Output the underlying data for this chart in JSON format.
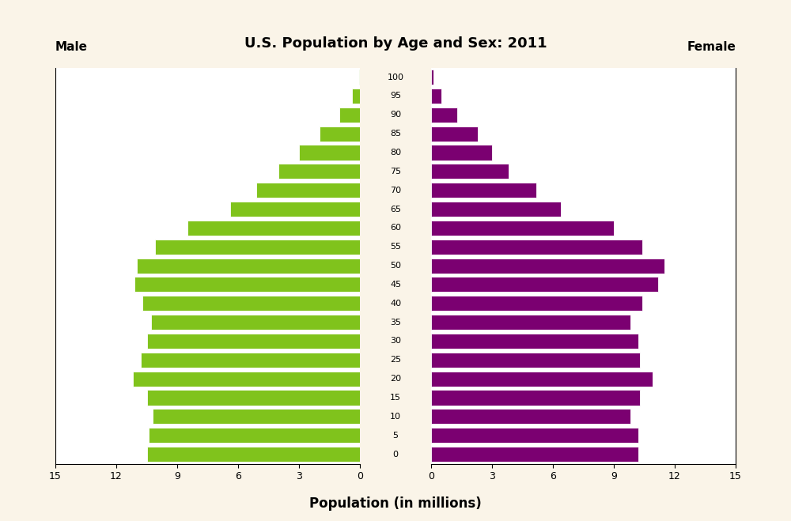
{
  "title": "U.S. Population by Age and Sex: 2011",
  "xlabel": "Population (in millions)",
  "male_label": "Male",
  "female_label": "Female",
  "age_groups": [
    0,
    5,
    10,
    15,
    20,
    25,
    30,
    35,
    40,
    45,
    50,
    55,
    60,
    65,
    70,
    75,
    80,
    85,
    90,
    95,
    100
  ],
  "male_values": [
    10.5,
    10.4,
    10.2,
    10.5,
    11.2,
    10.8,
    10.5,
    10.3,
    10.7,
    11.1,
    11.0,
    10.1,
    8.5,
    6.4,
    5.1,
    4.0,
    3.0,
    2.0,
    1.0,
    0.4,
    0.05
  ],
  "female_values": [
    10.2,
    10.2,
    9.8,
    10.3,
    10.9,
    10.3,
    10.2,
    9.8,
    10.4,
    11.2,
    11.5,
    10.4,
    9.0,
    6.4,
    5.2,
    3.8,
    3.0,
    2.3,
    1.3,
    0.5,
    0.1
  ],
  "male_color": "#80C31C",
  "female_color": "#7B0071",
  "background_color": "#FAF4E8",
  "plot_background": "#FFFFFF",
  "xlim": 15,
  "bar_height": 0.8,
  "title_fontsize": 13,
  "label_fontsize": 11,
  "axis_label_fontsize": 12,
  "tick_fontsize": 9,
  "age_fontsize": 8
}
